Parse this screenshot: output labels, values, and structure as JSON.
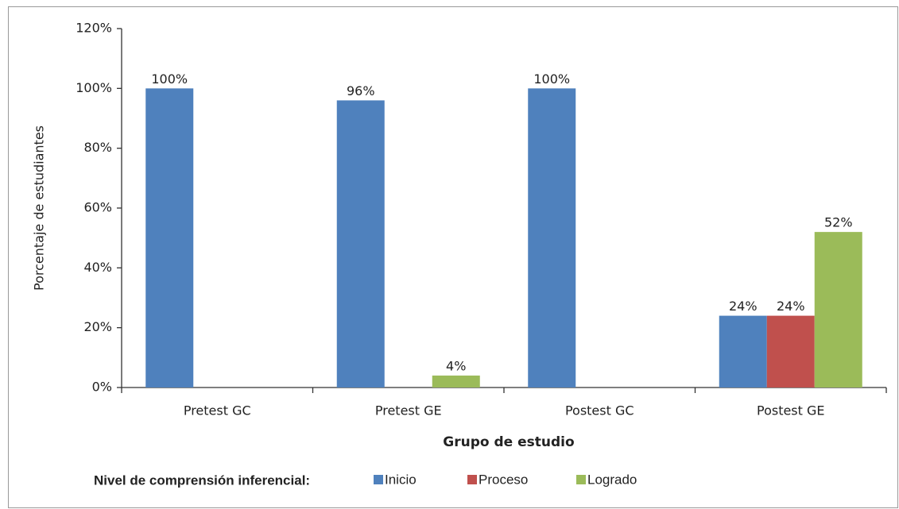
{
  "chart_data": {
    "type": "bar",
    "categories": [
      "Pretest GC",
      "Pretest GE",
      "Postest GC",
      "Postest GE"
    ],
    "series": [
      {
        "name": "Inicio",
        "color": "#4f81bd",
        "values": [
          100,
          96,
          100,
          24
        ],
        "value_labels": [
          "100%",
          "96%",
          "100%",
          "24%"
        ]
      },
      {
        "name": "Proceso",
        "color": "#c0504d",
        "values": [
          null,
          null,
          null,
          24
        ],
        "value_labels": [
          null,
          null,
          null,
          "24%"
        ]
      },
      {
        "name": "Logrado",
        "color": "#9bbb59",
        "values": [
          null,
          4,
          null,
          52
        ],
        "value_labels": [
          null,
          "4%",
          null,
          "52%"
        ]
      }
    ],
    "ylim": [
      0,
      120
    ],
    "yticks": [
      {
        "value": 0,
        "label": "0%"
      },
      {
        "value": 20,
        "label": "20%"
      },
      {
        "value": 40,
        "label": "40%"
      },
      {
        "value": 60,
        "label": "60%"
      },
      {
        "value": 80,
        "label": "80%"
      },
      {
        "value": 100,
        "label": "100%"
      },
      {
        "value": 120,
        "label": "120%"
      }
    ],
    "xlabel": "Grupo de estudio",
    "ylabel": "Porcentaje de estudiantes",
    "legend_title": "Nivel de comprensión inferencial:",
    "legend": "bottom",
    "grid": false
  }
}
